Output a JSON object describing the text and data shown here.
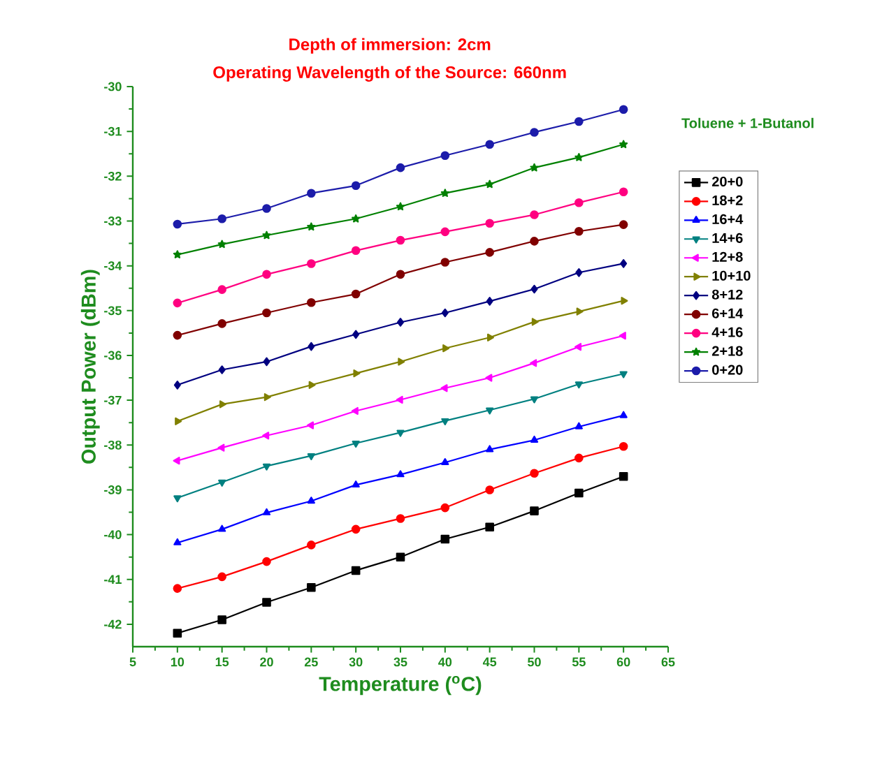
{
  "chart_data": {
    "type": "line",
    "title": "Depth of immersion: 2cm",
    "subtitle": "Operating Wavelength of the Source: 660nm",
    "xlabel": "Temperature ($^{o}$C)",
    "ylabel": "Output Power (dBm)",
    "legend_title": "Toluene + 1-Butanol",
    "legend": "right",
    "grid": false,
    "xlim": [
      5,
      65
    ],
    "ylim": [
      -42.5,
      -30
    ],
    "xticks": [
      5,
      10,
      15,
      20,
      25,
      30,
      35,
      40,
      45,
      50,
      55,
      60,
      65
    ],
    "yticks": [
      -42,
      -41,
      -40,
      -39,
      -38,
      -37,
      -36,
      -35,
      -34,
      -33,
      -32,
      -31,
      -30
    ],
    "x": [
      10,
      15,
      20,
      25,
      30,
      35,
      40,
      45,
      50,
      55,
      60
    ],
    "series": [
      {
        "name": "20+0",
        "color": "#000000",
        "marker": "square",
        "values": [
          -42.2,
          -41.9,
          -41.51,
          -41.18,
          -40.8,
          -40.5,
          -40.1,
          -39.83,
          -39.47,
          -39.07,
          -38.7
        ]
      },
      {
        "name": "18+2",
        "color": "#ff0000",
        "marker": "circle",
        "values": [
          -41.2,
          -40.94,
          -40.6,
          -40.23,
          -39.88,
          -39.64,
          -39.4,
          -39.0,
          -38.63,
          -38.29,
          -38.03
        ]
      },
      {
        "name": "16+4",
        "color": "#0000ff",
        "marker": "triangle",
        "values": [
          -40.18,
          -39.88,
          -39.51,
          -39.25,
          -38.89,
          -38.66,
          -38.39,
          -38.1,
          -37.89,
          -37.59,
          -37.34
        ]
      },
      {
        "name": "14+6",
        "color": "#008080",
        "marker": "triangle",
        "values": [
          -39.18,
          -38.83,
          -38.47,
          -38.24,
          -37.96,
          -37.72,
          -37.46,
          -37.22,
          -36.97,
          -36.64,
          -36.41
        ]
      },
      {
        "name": "12+8",
        "color": "#ff00ff",
        "marker": "triangle",
        "values": [
          -38.35,
          -38.06,
          -37.79,
          -37.56,
          -37.24,
          -36.99,
          -36.73,
          -36.5,
          -36.17,
          -35.81,
          -35.56
        ]
      },
      {
        "name": "10+10",
        "color": "#808000",
        "marker": "triangle",
        "values": [
          -37.47,
          -37.09,
          -36.93,
          -36.66,
          -36.4,
          -36.14,
          -35.84,
          -35.6,
          -35.25,
          -35.02,
          -34.78
        ]
      },
      {
        "name": "8+12",
        "color": "#000080",
        "marker": "diamond",
        "values": [
          -36.66,
          -36.32,
          -36.14,
          -35.8,
          -35.53,
          -35.26,
          -35.05,
          -34.79,
          -34.52,
          -34.15,
          -33.95
        ]
      },
      {
        "name": "6+14",
        "color": "#800000",
        "marker": "circle",
        "values": [
          -35.55,
          -35.29,
          -35.05,
          -34.82,
          -34.63,
          -34.19,
          -33.92,
          -33.7,
          -33.45,
          -33.23,
          -33.08
        ]
      },
      {
        "name": "4+16",
        "color": "#ff0080",
        "marker": "circle",
        "values": [
          -34.83,
          -34.53,
          -34.19,
          -33.95,
          -33.66,
          -33.43,
          -33.24,
          -33.05,
          -32.86,
          -32.59,
          -32.35
        ]
      },
      {
        "name": "2+18",
        "color": "#008000",
        "marker": "star",
        "values": [
          -33.75,
          -33.52,
          -33.32,
          -33.13,
          -32.95,
          -32.68,
          -32.38,
          -32.18,
          -31.81,
          -31.58,
          -31.29
        ]
      },
      {
        "name": "0+20",
        "color": "#1c1caa",
        "marker": "circle",
        "values": [
          -33.07,
          -32.95,
          -32.72,
          -32.38,
          -32.21,
          -31.81,
          -31.54,
          -31.29,
          -31.02,
          -30.78,
          -30.51
        ]
      }
    ]
  }
}
